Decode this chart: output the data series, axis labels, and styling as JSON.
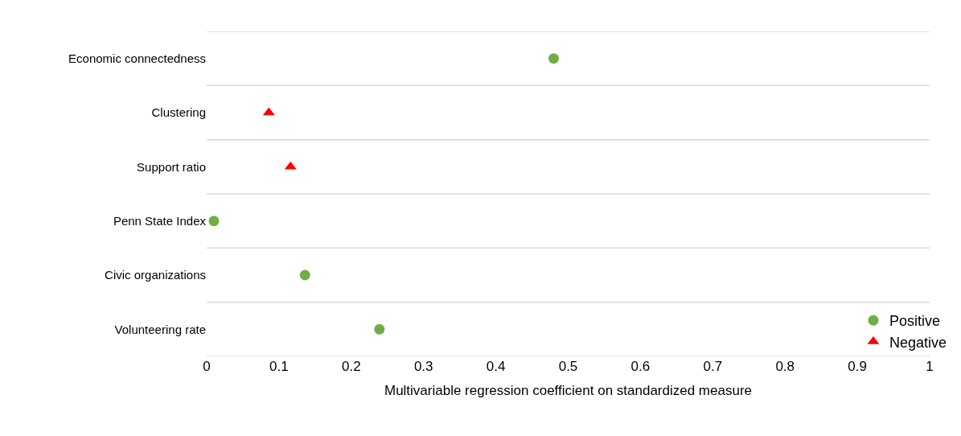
{
  "chart_data": {
    "type": "scatter",
    "orientation": "horizontal",
    "xlabel": "Multivariable regression coefficient on standardized measure",
    "categories": [
      "Economic connectedness",
      "Clustering",
      "Support ratio",
      "Penn State Index",
      "Civic organizations",
      "Volunteering rate"
    ],
    "series": [
      {
        "name": "Positive",
        "color": "#70ad47",
        "marker": "circle",
        "values": [
          0.48,
          null,
          null,
          0.01,
          0.136,
          0.239
        ]
      },
      {
        "name": "Negative",
        "color": "#ff0000",
        "marker": "triangle",
        "values": [
          null,
          0.086,
          0.116,
          null,
          null,
          null
        ]
      }
    ],
    "xlim": [
      0,
      1
    ],
    "xticks": [
      0,
      0.1,
      0.2,
      0.3,
      0.4,
      0.5,
      0.6,
      0.7,
      0.8,
      0.9,
      1
    ],
    "grid": "y",
    "legend": "bottom right"
  }
}
